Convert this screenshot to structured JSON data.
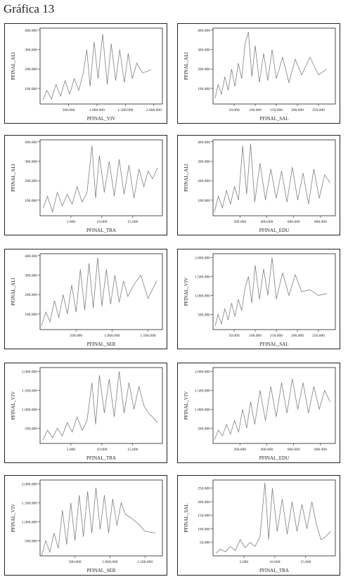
{
  "title": "Gráfica 13",
  "chart_data": [
    {
      "type": "line",
      "y_label": "PFINAL_ALI",
      "x_label": "PFINAL_VIV",
      "color": "#808080",
      "x": [
        50000,
        120000,
        200000,
        280000,
        360000,
        440000,
        520000,
        600000,
        680000,
        760000,
        820000,
        880000,
        950000,
        1020000,
        1100000,
        1180000,
        1250000,
        1330000,
        1400000,
        1480000,
        1550000,
        1620000,
        1700000,
        1800000,
        1950000
      ],
      "values": [
        40000,
        90000,
        45000,
        120000,
        60000,
        140000,
        70000,
        150000,
        90000,
        180000,
        300000,
        110000,
        340000,
        150000,
        380000,
        120000,
        330000,
        140000,
        300000,
        130000,
        280000,
        150000,
        230000,
        180000,
        195000
      ],
      "xlim": [
        0,
        2150000
      ],
      "ylim": [
        20000,
        410000
      ],
      "xticks": [
        {
          "value": 500000,
          "label": "500.000"
        },
        {
          "value": 1000000,
          "label": "1.000.000"
        },
        {
          "value": 1500000,
          "label": "1.500.000"
        },
        {
          "value": 2000000,
          "label": "2.000.000"
        }
      ],
      "yticks": [
        {
          "value": 100000,
          "label": "100.000"
        },
        {
          "value": 200000,
          "label": "200.000"
        },
        {
          "value": 300000,
          "label": "300.000"
        },
        {
          "value": 400000,
          "label": "400.000"
        }
      ]
    },
    {
      "type": "line",
      "y_label": "PFINAL_ALI",
      "x_label": "PFINAL_SAL",
      "color": "#808080",
      "x": [
        5000,
        12000,
        20000,
        28000,
        36000,
        44000,
        52000,
        60000,
        68000,
        76000,
        84000,
        92000,
        100000,
        110000,
        120000,
        130000,
        140000,
        150000,
        165000,
        180000,
        195000,
        210000,
        230000,
        250000,
        270000
      ],
      "values": [
        50000,
        120000,
        70000,
        160000,
        90000,
        200000,
        110000,
        230000,
        150000,
        330000,
        390000,
        160000,
        320000,
        130000,
        280000,
        140000,
        300000,
        150000,
        260000,
        130000,
        250000,
        170000,
        260000,
        170000,
        200000
      ],
      "xlim": [
        0,
        290000
      ],
      "ylim": [
        20000,
        410000
      ],
      "xticks": [
        {
          "value": 50000,
          "label": "50.000"
        },
        {
          "value": 100000,
          "label": "100.000"
        },
        {
          "value": 150000,
          "label": "150.000"
        },
        {
          "value": 200000,
          "label": "200.000"
        },
        {
          "value": 250000,
          "label": "250.000"
        }
      ],
      "yticks": [
        {
          "value": 100000,
          "label": "100.000"
        },
        {
          "value": 200000,
          "label": "200.000"
        },
        {
          "value": 300000,
          "label": "300.000"
        },
        {
          "value": 400000,
          "label": "400.000"
        }
      ]
    },
    {
      "type": "line",
      "y_label": "PFINAL_ALI",
      "x_label": "PFINAL_TRA",
      "color": "#808080",
      "x": [
        500,
        1200,
        2000,
        2800,
        3600,
        4400,
        5200,
        6000,
        6800,
        7600,
        8400,
        9000,
        9600,
        10400,
        11200,
        12000,
        12800,
        13600,
        14400,
        15200,
        16000,
        16800,
        17500,
        18200,
        19000
      ],
      "values": [
        60000,
        120000,
        40000,
        140000,
        70000,
        130000,
        80000,
        170000,
        90000,
        140000,
        380000,
        110000,
        330000,
        140000,
        300000,
        120000,
        310000,
        130000,
        280000,
        110000,
        260000,
        170000,
        250000,
        210000,
        265000
      ],
      "xlim": [
        0,
        19800
      ],
      "ylim": [
        20000,
        410000
      ],
      "xticks": [
        {
          "value": 5000,
          "label": "5.000"
        },
        {
          "value": 10000,
          "label": "10.000"
        },
        {
          "value": 15000,
          "label": "15.000"
        }
      ],
      "yticks": [
        {
          "value": 100000,
          "label": "100.000"
        },
        {
          "value": 200000,
          "label": "200.000"
        },
        {
          "value": 300000,
          "label": "300.000"
        },
        {
          "value": 400000,
          "label": "400.000"
        }
      ]
    },
    {
      "type": "line",
      "y_label": "PFINAL_ALI",
      "x_label": "PFINAL_EDU",
      "color": "#808080",
      "x": [
        10000,
        40000,
        70000,
        100000,
        130000,
        160000,
        190000,
        220000,
        250000,
        280000,
        310000,
        350000,
        390000,
        430000,
        470000,
        510000,
        550000,
        590000,
        630000,
        670000,
        710000,
        750000,
        790000,
        830000,
        870000
      ],
      "values": [
        40000,
        120000,
        60000,
        150000,
        80000,
        170000,
        100000,
        380000,
        130000,
        390000,
        90000,
        290000,
        100000,
        260000,
        110000,
        250000,
        90000,
        270000,
        100000,
        240000,
        80000,
        260000,
        110000,
        230000,
        190000
      ],
      "xlim": [
        0,
        910000
      ],
      "ylim": [
        20000,
        410000
      ],
      "xticks": [
        {
          "value": 200000,
          "label": "200.000"
        },
        {
          "value": 400000,
          "label": "400.000"
        },
        {
          "value": 600000,
          "label": "600.000"
        },
        {
          "value": 800000,
          "label": "800.000"
        }
      ],
      "yticks": [
        {
          "value": 100000,
          "label": "100.000"
        },
        {
          "value": 200000,
          "label": "200.000"
        },
        {
          "value": 300000,
          "label": "300.000"
        },
        {
          "value": 400000,
          "label": "400.000"
        }
      ]
    },
    {
      "type": "line",
      "y_label": "PFINAL_ALI",
      "x_label": "PFINAL_SER",
      "color": "#808080",
      "x": [
        20000,
        80000,
        140000,
        200000,
        260000,
        320000,
        380000,
        440000,
        500000,
        560000,
        620000,
        680000,
        740000,
        800000,
        860000,
        920000,
        980000,
        1040000,
        1100000,
        1160000,
        1220000,
        1300000,
        1400000,
        1500000,
        1620000
      ],
      "values": [
        40000,
        110000,
        60000,
        170000,
        80000,
        200000,
        100000,
        250000,
        110000,
        330000,
        120000,
        360000,
        130000,
        390000,
        140000,
        330000,
        150000,
        300000,
        160000,
        270000,
        190000,
        250000,
        300000,
        180000,
        270000
      ],
      "xlim": [
        0,
        1700000
      ],
      "ylim": [
        20000,
        410000
      ],
      "xticks": [
        {
          "value": 500000,
          "label": "500.000"
        },
        {
          "value": 1000000,
          "label": "1.000.000"
        },
        {
          "value": 1500000,
          "label": "1.500.000"
        }
      ],
      "yticks": [
        {
          "value": 100000,
          "label": "100.000"
        },
        {
          "value": 200000,
          "label": "200.000"
        },
        {
          "value": 300000,
          "label": "300.000"
        },
        {
          "value": 400000,
          "label": "400.000"
        }
      ]
    },
    {
      "type": "line",
      "y_label": "PFINAL_VIV",
      "x_label": "PFINAL_SAL",
      "color": "#808080",
      "x": [
        5000,
        12000,
        20000,
        28000,
        36000,
        44000,
        52000,
        60000,
        68000,
        76000,
        84000,
        92000,
        100000,
        110000,
        120000,
        130000,
        140000,
        150000,
        165000,
        180000,
        195000,
        210000,
        230000,
        250000,
        270000
      ],
      "values": [
        200000,
        500000,
        250000,
        650000,
        350000,
        800000,
        450000,
        900000,
        600000,
        1200000,
        1500000,
        800000,
        1800000,
        900000,
        1700000,
        1000000,
        2000000,
        900000,
        1600000,
        1000000,
        1550000,
        1100000,
        1150000,
        1000000,
        1050000
      ],
      "xlim": [
        0,
        290000
      ],
      "ylim": [
        100000,
        2100000
      ],
      "xticks": [
        {
          "value": 50000,
          "label": "50.000"
        },
        {
          "value": 100000,
          "label": "100.000"
        },
        {
          "value": 150000,
          "label": "150.000"
        },
        {
          "value": 200000,
          "label": "200.000"
        },
        {
          "value": 250000,
          "label": "250.000"
        }
      ],
      "yticks": [
        {
          "value": 500000,
          "label": "500.000"
        },
        {
          "value": 1000000,
          "label": "1.000.000"
        },
        {
          "value": 1500000,
          "label": "1.500.000"
        },
        {
          "value": 2000000,
          "label": "2.000.000"
        }
      ]
    },
    {
      "type": "line",
      "y_label": "PFINAL_VIV",
      "x_label": "PFINAL_TRA",
      "color": "#808080",
      "x": [
        500,
        1200,
        2000,
        2800,
        3600,
        4400,
        5200,
        6000,
        6800,
        7600,
        8400,
        9000,
        9600,
        10400,
        11200,
        12000,
        12800,
        13600,
        14400,
        15200,
        16000,
        16800,
        17500,
        18200,
        19000
      ],
      "values": [
        200000,
        450000,
        250000,
        500000,
        300000,
        650000,
        400000,
        800000,
        450000,
        700000,
        1700000,
        600000,
        1900000,
        900000,
        1800000,
        800000,
        2000000,
        900000,
        1700000,
        1000000,
        1600000,
        1100000,
        900000,
        800000,
        650000
      ],
      "xlim": [
        0,
        19800
      ],
      "ylim": [
        100000,
        2100000
      ],
      "xticks": [
        {
          "value": 5000,
          "label": "5.000"
        },
        {
          "value": 10000,
          "label": "10.000"
        },
        {
          "value": 15000,
          "label": "15.000"
        }
      ],
      "yticks": [
        {
          "value": 500000,
          "label": "500.000"
        },
        {
          "value": 1000000,
          "label": "1.000.000"
        },
        {
          "value": 1500000,
          "label": "1.500.000"
        },
        {
          "value": 2000000,
          "label": "2.000.000"
        }
      ]
    },
    {
      "type": "line",
      "y_label": "PFINAL_VIV",
      "x_label": "PFINAL_EDU",
      "color": "#808080",
      "x": [
        10000,
        40000,
        70000,
        100000,
        130000,
        160000,
        190000,
        220000,
        250000,
        280000,
        310000,
        350000,
        390000,
        430000,
        470000,
        510000,
        550000,
        590000,
        630000,
        670000,
        710000,
        750000,
        790000,
        830000,
        870000
      ],
      "values": [
        200000,
        450000,
        300000,
        600000,
        350000,
        700000,
        400000,
        1000000,
        500000,
        1200000,
        600000,
        1500000,
        700000,
        1600000,
        800000,
        1700000,
        900000,
        1800000,
        1000000,
        1700000,
        900000,
        1600000,
        1000000,
        1500000,
        1200000
      ],
      "xlim": [
        0,
        910000
      ],
      "ylim": [
        100000,
        2100000
      ],
      "xticks": [
        {
          "value": 200000,
          "label": "200.000"
        },
        {
          "value": 400000,
          "label": "400.000"
        },
        {
          "value": 600000,
          "label": "600.000"
        },
        {
          "value": 800000,
          "label": "800.000"
        }
      ],
      "yticks": [
        {
          "value": 500000,
          "label": "500.000"
        },
        {
          "value": 1000000,
          "label": "1.000.000"
        },
        {
          "value": 1500000,
          "label": "1.500.000"
        },
        {
          "value": 2000000,
          "label": "2.000.000"
        }
      ]
    },
    {
      "type": "line",
      "y_label": "PFINAL_VIV",
      "x_label": "PFINAL_SER",
      "color": "#808080",
      "x": [
        20000,
        80000,
        140000,
        200000,
        260000,
        320000,
        380000,
        440000,
        500000,
        560000,
        620000,
        680000,
        740000,
        800000,
        860000,
        920000,
        980000,
        1040000,
        1100000,
        1160000,
        1220000,
        1300000,
        1400000,
        1500000,
        1650000
      ],
      "values": [
        100000,
        500000,
        200000,
        700000,
        300000,
        1300000,
        400000,
        1500000,
        500000,
        1700000,
        600000,
        1800000,
        700000,
        1900000,
        800000,
        1700000,
        700000,
        1600000,
        900000,
        1500000,
        1200000,
        1100000,
        950000,
        750000,
        700000
      ],
      "xlim": [
        0,
        1750000
      ],
      "ylim": [
        100000,
        2100000
      ],
      "xticks": [
        {
          "value": 500000,
          "label": "500.000"
        },
        {
          "value": 1000000,
          "label": "1.000.000"
        },
        {
          "value": 1500000,
          "label": "1.500.000"
        }
      ],
      "yticks": [
        {
          "value": 500000,
          "label": "500.000"
        },
        {
          "value": 1000000,
          "label": "1.000.000"
        },
        {
          "value": 1500000,
          "label": "1.500.000"
        },
        {
          "value": 2000000,
          "label": "2.000.000"
        }
      ]
    },
    {
      "type": "line",
      "y_label": "PFINAL_SAL",
      "x_label": "PFINAL_TRA",
      "color": "#808080",
      "x": [
        500,
        1200,
        2000,
        2800,
        3600,
        4400,
        5200,
        6000,
        6800,
        7600,
        8400,
        9000,
        9600,
        10400,
        11200,
        12000,
        12800,
        13600,
        14400,
        15200,
        16000,
        16800,
        17500,
        18200,
        19000
      ],
      "values": [
        10000,
        25000,
        15000,
        35000,
        20000,
        60000,
        30000,
        50000,
        35000,
        70000,
        270000,
        60000,
        250000,
        90000,
        210000,
        80000,
        200000,
        90000,
        190000,
        100000,
        200000,
        110000,
        60000,
        70000,
        90000
      ],
      "xlim": [
        0,
        19800
      ],
      "ylim": [
        0,
        280000
      ],
      "xticks": [
        {
          "value": 5000,
          "label": "5.000"
        },
        {
          "value": 10000,
          "label": "10.000"
        },
        {
          "value": 15000,
          "label": "15.000"
        }
      ],
      "yticks": [
        {
          "value": 50000,
          "label": "50.000"
        },
        {
          "value": 100000,
          "label": "100.000"
        },
        {
          "value": 150000,
          "label": "150.000"
        },
        {
          "value": 200000,
          "label": "200.000"
        },
        {
          "value": 250000,
          "label": "250.000"
        }
      ]
    }
  ]
}
